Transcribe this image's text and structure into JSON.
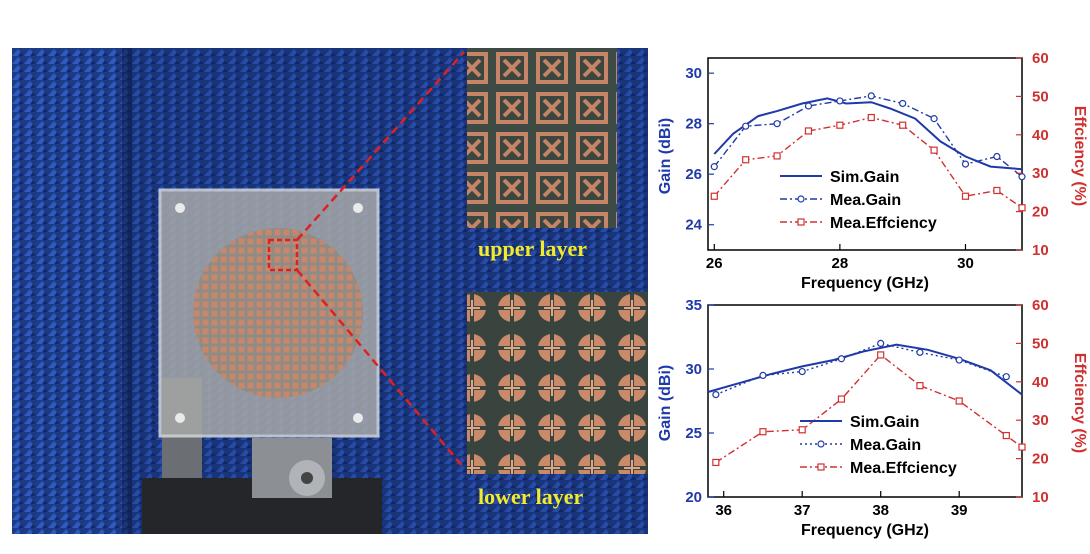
{
  "photo": {
    "upper_label": "upper layer",
    "lower_label": "lower layer",
    "colors": {
      "absorber": "#1f3d8a",
      "copper": "#c98a6a",
      "substrate": "#3b3f3a",
      "callout": "#e02020",
      "label": "#f2ea2c"
    }
  },
  "chart_data": [
    {
      "type": "line",
      "x": [
        26,
        26.5,
        27,
        27.5,
        28,
        28.5,
        29,
        29.5,
        30,
        30.5,
        30.9
      ],
      "xlim": [
        25.9,
        30.9
      ],
      "xticks": [
        26,
        28,
        30
      ],
      "xlabel": "Frequency (GHz)",
      "ylabel": "Gain (dBi)",
      "ylim": [
        23,
        30.6
      ],
      "yticks": [
        24,
        26,
        28,
        30
      ],
      "ylabel2": "Effciency (%)",
      "ylim2": [
        10,
        60
      ],
      "yticks2": [
        10,
        20,
        30,
        40,
        50,
        60
      ],
      "series": [
        {
          "name": "Sim.Gain",
          "axis": "left",
          "color": "#1f3aa8",
          "style": "solid",
          "x": [
            26,
            26.3,
            26.7,
            27,
            27.4,
            27.8,
            28.1,
            28.5,
            28.8,
            29.2,
            29.6,
            30,
            30.4,
            30.9
          ],
          "values": [
            26.8,
            27.6,
            28.3,
            28.5,
            28.8,
            29.0,
            28.8,
            28.85,
            28.6,
            28.2,
            27.3,
            26.7,
            26.3,
            26.2
          ]
        },
        {
          "name": "Mea.Gain",
          "axis": "left",
          "color": "#1f3aa8",
          "style": "dashdot",
          "x": [
            26,
            26.5,
            27,
            27.5,
            28,
            28.5,
            29,
            29.5,
            30,
            30.5,
            30.9
          ],
          "values": [
            26.3,
            27.9,
            28.0,
            28.7,
            28.9,
            29.1,
            28.8,
            28.2,
            26.4,
            26.7,
            25.9
          ]
        },
        {
          "name": "Mea.Effciency",
          "axis": "right",
          "color": "#d03030",
          "style": "dashdot",
          "x": [
            26,
            26.5,
            27,
            27.5,
            28,
            28.5,
            29,
            29.5,
            30,
            30.5,
            30.9
          ],
          "values": [
            24,
            33.5,
            34.5,
            41,
            42.5,
            44.5,
            42.5,
            36,
            24,
            25.5,
            21
          ]
        }
      ]
    },
    {
      "type": "line",
      "x": [
        35.9,
        36.5,
        37,
        37.5,
        38,
        38.5,
        39,
        39.6
      ],
      "xlim": [
        35.8,
        39.8
      ],
      "xticks": [
        36,
        37,
        38,
        39
      ],
      "xlabel": "Frequency (GHz)",
      "ylabel": "Gain (dBi)",
      "ylim": [
        20,
        35
      ],
      "yticks": [
        20,
        25,
        30,
        35
      ],
      "ylabel2": "Effciency (%)",
      "ylim2": [
        10,
        60
      ],
      "yticks2": [
        10,
        20,
        30,
        40,
        50,
        60
      ],
      "series": [
        {
          "name": "Sim.Gain",
          "axis": "left",
          "color": "#1f3aa8",
          "style": "solid",
          "x": [
            35.8,
            36.2,
            36.6,
            37,
            37.4,
            37.8,
            38.2,
            38.6,
            39,
            39.4,
            39.8
          ],
          "values": [
            28.2,
            28.9,
            29.6,
            30.2,
            30.7,
            31.4,
            31.9,
            31.5,
            30.8,
            29.9,
            28.0
          ]
        },
        {
          "name": "Mea.Gain",
          "axis": "left",
          "color": "#1f3aa8",
          "style": "dotted",
          "x": [
            35.9,
            36.5,
            37,
            37.5,
            38,
            38.5,
            39,
            39.6
          ],
          "values": [
            28.0,
            29.5,
            29.8,
            30.8,
            32.0,
            31.3,
            30.7,
            29.4
          ]
        },
        {
          "name": "Mea.Effciency",
          "axis": "right",
          "color": "#d03030",
          "style": "dashdot",
          "x": [
            35.9,
            36.5,
            37,
            37.5,
            38,
            38.5,
            39,
            39.6,
            39.8
          ],
          "values": [
            19,
            27,
            27.5,
            35.5,
            47,
            39,
            35,
            26,
            23
          ]
        }
      ]
    }
  ]
}
